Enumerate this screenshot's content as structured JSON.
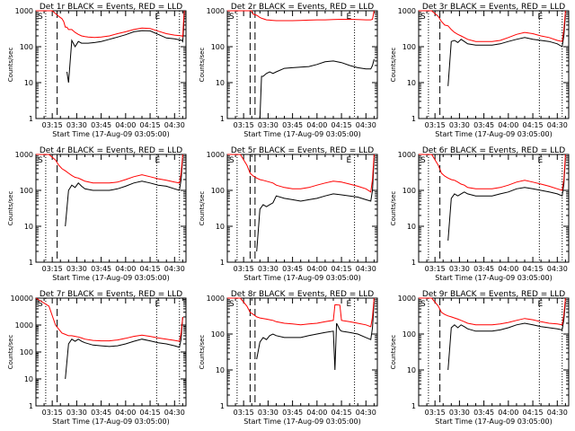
{
  "colors": {
    "events": "#000000",
    "lld": "#ff0000",
    "axis": "#000000",
    "background": "#ffffff"
  },
  "shared": {
    "xlabel": "Start Time (17-Aug-09 03:05:00)",
    "ylabel": "Counts/sec",
    "x_tick_labels": [
      "03:15",
      "03:30",
      "03:45",
      "04:00",
      "04:15",
      "04:30"
    ],
    "marker_s": "S",
    "marker_e": "E"
  },
  "chart_data": [
    {
      "type": "line",
      "title": "Det 1r BLACK = Events, RED = LLD",
      "ylim": [
        1,
        1000
      ],
      "y_tick_labels": [
        "1",
        "10",
        "100",
        "1000"
      ],
      "x": [
        0,
        10,
        14,
        16,
        17,
        18,
        19,
        20,
        22,
        24,
        26,
        28,
        30,
        32,
        36,
        40,
        45,
        50,
        55,
        60,
        65,
        70,
        75,
        80,
        85,
        89.6,
        90,
        90.5,
        91
      ],
      "series": [
        {
          "name": "Events",
          "values": [
            null,
            null,
            null,
            null,
            null,
            null,
            20,
            10,
            150,
            100,
            140,
            125,
            125,
            125,
            130,
            140,
            160,
            185,
            215,
            260,
            280,
            275,
            220,
            175,
            165,
            150,
            140,
            300,
            1000
          ]
        },
        {
          "name": "LLD",
          "values": [
            1000,
            1000,
            700,
            600,
            500,
            350,
            350,
            300,
            300,
            250,
            220,
            200,
            190,
            185,
            180,
            185,
            200,
            230,
            260,
            300,
            330,
            320,
            270,
            230,
            210,
            200,
            190,
            500,
            1000
          ]
        }
      ]
    },
    {
      "type": "line",
      "title": "Det 2r BLACK = Events, RED = LLD",
      "ylim": [
        1,
        1000
      ],
      "y_tick_labels": [
        "1",
        "10",
        "100",
        "1000"
      ],
      "x": [
        0,
        15,
        16,
        18,
        19,
        20,
        21,
        22,
        24,
        26,
        28,
        30,
        35,
        40,
        45,
        50,
        55,
        60,
        65,
        70,
        75,
        80,
        85,
        88,
        89,
        90
      ],
      "series": [
        {
          "name": "Events",
          "values": [
            null,
            null,
            null,
            null,
            null,
            1,
            15,
            15,
            18,
            20,
            18,
            20,
            25,
            26,
            27,
            28,
            32,
            38,
            40,
            36,
            30,
            26,
            24,
            24,
            30,
            45
          ]
        },
        {
          "name": "LLD",
          "values": [
            1000,
            1000,
            800,
            750,
            700,
            650,
            620,
            600,
            560,
            550,
            540,
            530,
            530,
            530,
            540,
            550,
            560,
            560,
            570,
            580,
            580,
            570,
            560,
            560,
            580,
            1000
          ]
        }
      ]
    },
    {
      "type": "line",
      "title": "Det 3r BLACK = Events, RED = LLD",
      "ylim": [
        1,
        1000
      ],
      "y_tick_labels": [
        "1",
        "10",
        "100",
        "1000"
      ],
      "x": [
        0,
        8,
        12,
        14,
        16,
        18,
        20,
        22,
        24,
        26,
        28,
        30,
        35,
        40,
        45,
        50,
        55,
        60,
        65,
        70,
        75,
        80,
        85,
        88,
        89,
        90
      ],
      "series": [
        {
          "name": "Events",
          "values": [
            null,
            null,
            null,
            null,
            null,
            8,
            140,
            150,
            130,
            160,
            140,
            120,
            110,
            110,
            110,
            120,
            140,
            160,
            180,
            160,
            150,
            140,
            120,
            100,
            200,
            800
          ]
        },
        {
          "name": "LLD",
          "values": [
            1000,
            1000,
            700,
            500,
            400,
            380,
            300,
            250,
            220,
            200,
            180,
            160,
            140,
            140,
            140,
            150,
            180,
            220,
            250,
            230,
            200,
            180,
            150,
            140,
            300,
            1000
          ]
        }
      ]
    },
    {
      "type": "line",
      "title": "Det 4r BLACK = Events, RED = LLD",
      "ylim": [
        1,
        1000
      ],
      "y_tick_labels": [
        "1",
        "10",
        "100",
        "1000"
      ],
      "x": [
        0,
        8,
        12,
        14,
        16,
        18,
        20,
        22,
        24,
        26,
        28,
        30,
        35,
        40,
        45,
        50,
        55,
        60,
        65,
        70,
        75,
        80,
        85,
        88,
        89,
        90
      ],
      "series": [
        {
          "name": "Events",
          "values": [
            null,
            null,
            null,
            null,
            null,
            10,
            100,
            140,
            120,
            160,
            130,
            110,
            100,
            100,
            100,
            110,
            130,
            160,
            180,
            160,
            140,
            130,
            110,
            100,
            200,
            800
          ]
        },
        {
          "name": "LLD",
          "values": [
            1000,
            1000,
            700,
            500,
            400,
            350,
            300,
            260,
            230,
            220,
            200,
            180,
            160,
            160,
            160,
            170,
            200,
            240,
            270,
            240,
            210,
            190,
            170,
            160,
            300,
            1000
          ]
        }
      ]
    },
    {
      "type": "line",
      "title": "Det 5r BLACK = Events, RED = LLD",
      "ylim": [
        1,
        1000
      ],
      "y_tick_labels": [
        "1",
        "10",
        "100",
        "1000"
      ],
      "x": [
        0,
        8,
        12,
        14,
        16,
        18,
        20,
        22,
        24,
        26,
        28,
        30,
        35,
        40,
        45,
        50,
        55,
        60,
        65,
        70,
        75,
        80,
        85,
        88,
        89,
        90
      ],
      "series": [
        {
          "name": "Events",
          "values": [
            null,
            null,
            null,
            null,
            null,
            2,
            30,
            40,
            35,
            40,
            45,
            70,
            60,
            55,
            50,
            55,
            60,
            70,
            80,
            75,
            70,
            65,
            55,
            50,
            100,
            800
          ]
        },
        {
          "name": "LLD",
          "values": [
            1000,
            1000,
            500,
            300,
            250,
            220,
            200,
            190,
            180,
            170,
            160,
            140,
            120,
            110,
            110,
            120,
            140,
            160,
            180,
            170,
            150,
            130,
            110,
            90,
            200,
            1000
          ]
        }
      ]
    },
    {
      "type": "line",
      "title": "Det 6r BLACK = Events, RED = LLD",
      "ylim": [
        1,
        1000
      ],
      "y_tick_labels": [
        "1",
        "10",
        "100",
        "1000"
      ],
      "x": [
        0,
        8,
        12,
        14,
        16,
        18,
        20,
        22,
        24,
        26,
        28,
        30,
        35,
        40,
        45,
        50,
        55,
        60,
        65,
        70,
        75,
        80,
        85,
        88,
        89,
        90
      ],
      "series": [
        {
          "name": "Events",
          "values": [
            null,
            null,
            null,
            null,
            null,
            4,
            60,
            80,
            70,
            80,
            90,
            80,
            70,
            70,
            70,
            80,
            90,
            110,
            120,
            110,
            100,
            90,
            80,
            70,
            150,
            800
          ]
        },
        {
          "name": "LLD",
          "values": [
            1000,
            1000,
            500,
            300,
            250,
            220,
            200,
            190,
            170,
            150,
            140,
            120,
            110,
            110,
            110,
            120,
            140,
            170,
            190,
            170,
            150,
            130,
            110,
            100,
            200,
            1000
          ]
        }
      ]
    },
    {
      "type": "line",
      "title": "Det 7r BLACK = Events, RED = LLD",
      "ylim": [
        1,
        10000
      ],
      "y_tick_labels": [
        "1",
        "10",
        "100",
        "1000",
        "10000"
      ],
      "x": [
        0,
        8,
        12,
        14,
        16,
        18,
        20,
        22,
        24,
        26,
        28,
        30,
        35,
        40,
        45,
        50,
        55,
        60,
        65,
        70,
        75,
        80,
        85,
        88,
        89,
        90
      ],
      "series": [
        {
          "name": "Events",
          "values": [
            null,
            null,
            null,
            null,
            null,
            10,
            200,
            300,
            250,
            300,
            250,
            220,
            180,
            170,
            160,
            170,
            200,
            250,
            300,
            260,
            220,
            200,
            170,
            150,
            300,
            2000
          ]
        },
        {
          "name": "LLD",
          "values": [
            10000,
            5000,
            1000,
            700,
            500,
            450,
            400,
            400,
            380,
            360,
            330,
            300,
            270,
            260,
            260,
            280,
            320,
            380,
            420,
            380,
            330,
            300,
            270,
            250,
            500,
            2000
          ]
        }
      ]
    },
    {
      "type": "line",
      "title": "Det 8r BLACK = Events, RED = LLD",
      "ylim": [
        1,
        1000
      ],
      "y_tick_labels": [
        "1",
        "10",
        "100",
        "1000"
      ],
      "x": [
        0,
        8,
        12,
        14,
        16,
        18,
        20,
        22,
        24,
        26,
        28,
        30,
        35,
        40,
        45,
        50,
        55,
        60,
        65,
        66,
        67,
        69,
        70,
        75,
        80,
        85,
        88,
        89,
        90
      ],
      "series": [
        {
          "name": "Events",
          "values": [
            null,
            null,
            null,
            null,
            null,
            20,
            60,
            80,
            70,
            90,
            100,
            90,
            80,
            80,
            80,
            90,
            100,
            110,
            120,
            10,
            200,
            130,
            120,
            110,
            100,
            80,
            70,
            150,
            800
          ]
        },
        {
          "name": "LLD",
          "values": [
            1000,
            1000,
            600,
            400,
            350,
            300,
            280,
            270,
            260,
            250,
            240,
            220,
            200,
            190,
            180,
            190,
            200,
            220,
            240,
            650,
            650,
            640,
            240,
            220,
            200,
            180,
            160,
            300,
            1000
          ]
        }
      ]
    },
    {
      "type": "line",
      "title": "Det 9r BLACK = Events, RED = LLD",
      "ylim": [
        1,
        1000
      ],
      "y_tick_labels": [
        "1",
        "10",
        "100",
        "1000"
      ],
      "x": [
        0,
        8,
        12,
        14,
        16,
        18,
        20,
        22,
        24,
        26,
        28,
        30,
        35,
        40,
        45,
        50,
        55,
        60,
        65,
        70,
        75,
        80,
        85,
        88,
        89,
        90
      ],
      "series": [
        {
          "name": "Events",
          "values": [
            null,
            null,
            null,
            null,
            null,
            10,
            150,
            180,
            150,
            180,
            160,
            140,
            120,
            120,
            120,
            130,
            150,
            180,
            200,
            180,
            160,
            150,
            140,
            130,
            250,
            800
          ]
        },
        {
          "name": "LLD",
          "values": [
            1000,
            1000,
            600,
            400,
            350,
            320,
            300,
            280,
            260,
            240,
            220,
            200,
            180,
            180,
            180,
            190,
            210,
            240,
            270,
            250,
            220,
            200,
            190,
            180,
            350,
            1000
          ]
        }
      ]
    }
  ]
}
